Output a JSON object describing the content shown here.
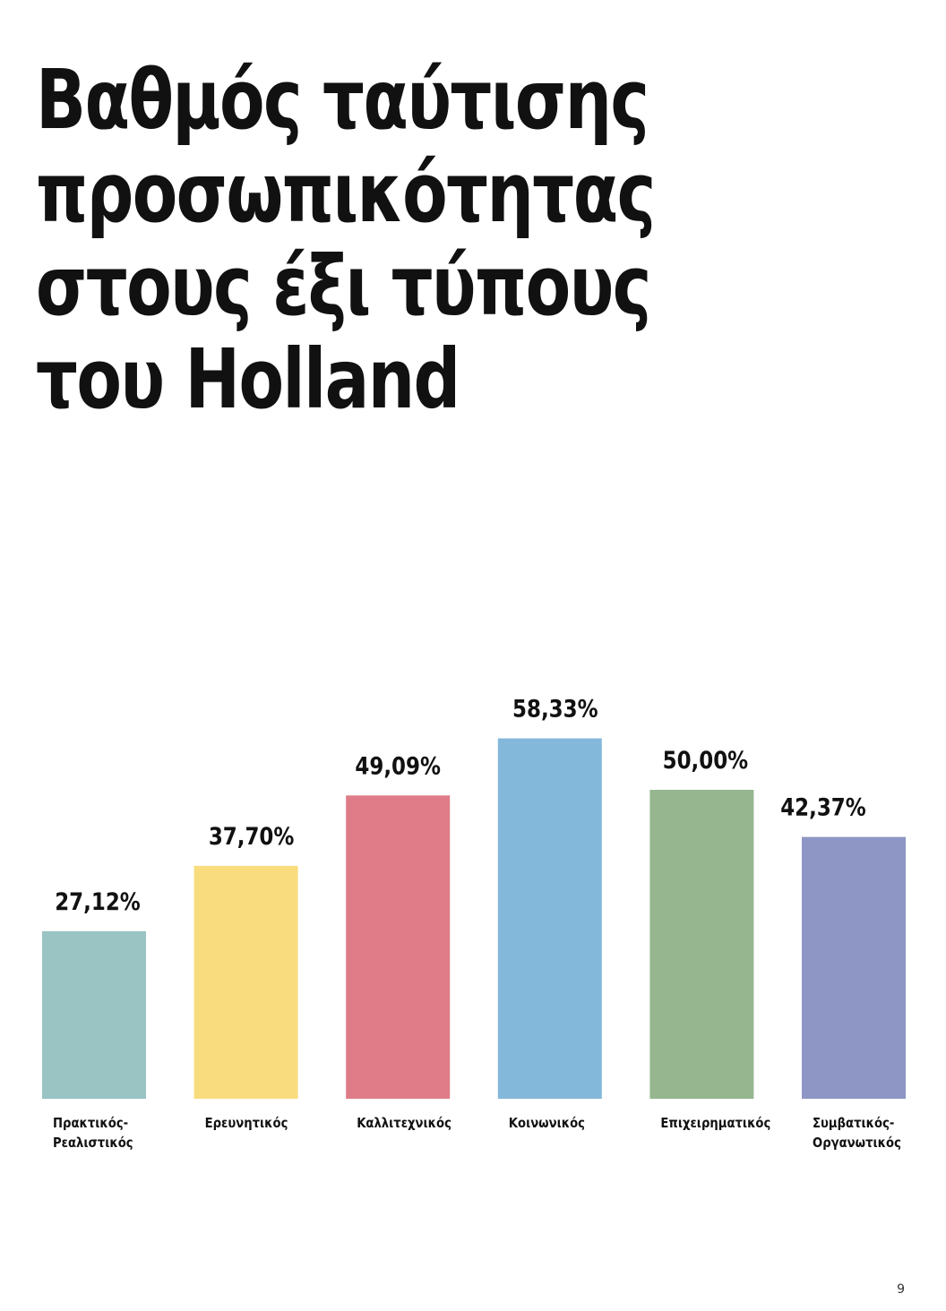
{
  "title_lines": [
    "Βαθμός ταύτισης",
    "προσωπικότητας",
    "στους έξι τύπους",
    "του Holland"
  ],
  "page_number": "9",
  "chart_data": {
    "type": "bar",
    "categories": [
      [
        "Πρακτικός-",
        "Ρεαλιστικός"
      ],
      [
        "Ερευνητικός"
      ],
      [
        "Καλλιτεχνικός"
      ],
      [
        "Κοινωνικός"
      ],
      [
        "Επιχειρηματικός"
      ],
      [
        "Συμβατικός-",
        "Οργανωτικός"
      ]
    ],
    "values": [
      27.12,
      37.7,
      49.09,
      58.33,
      50.0,
      42.37
    ],
    "value_labels": [
      "27,12%",
      "37,70%",
      "49,09%",
      "58,33%",
      "50,00%",
      "42,37%"
    ],
    "colors": [
      "#9ac4c4",
      "#f8dc7e",
      "#e07c88",
      "#84b8db",
      "#96b68f",
      "#8d96c5"
    ],
    "ylim": [
      0,
      100
    ],
    "grid": false,
    "legend": "none"
  }
}
